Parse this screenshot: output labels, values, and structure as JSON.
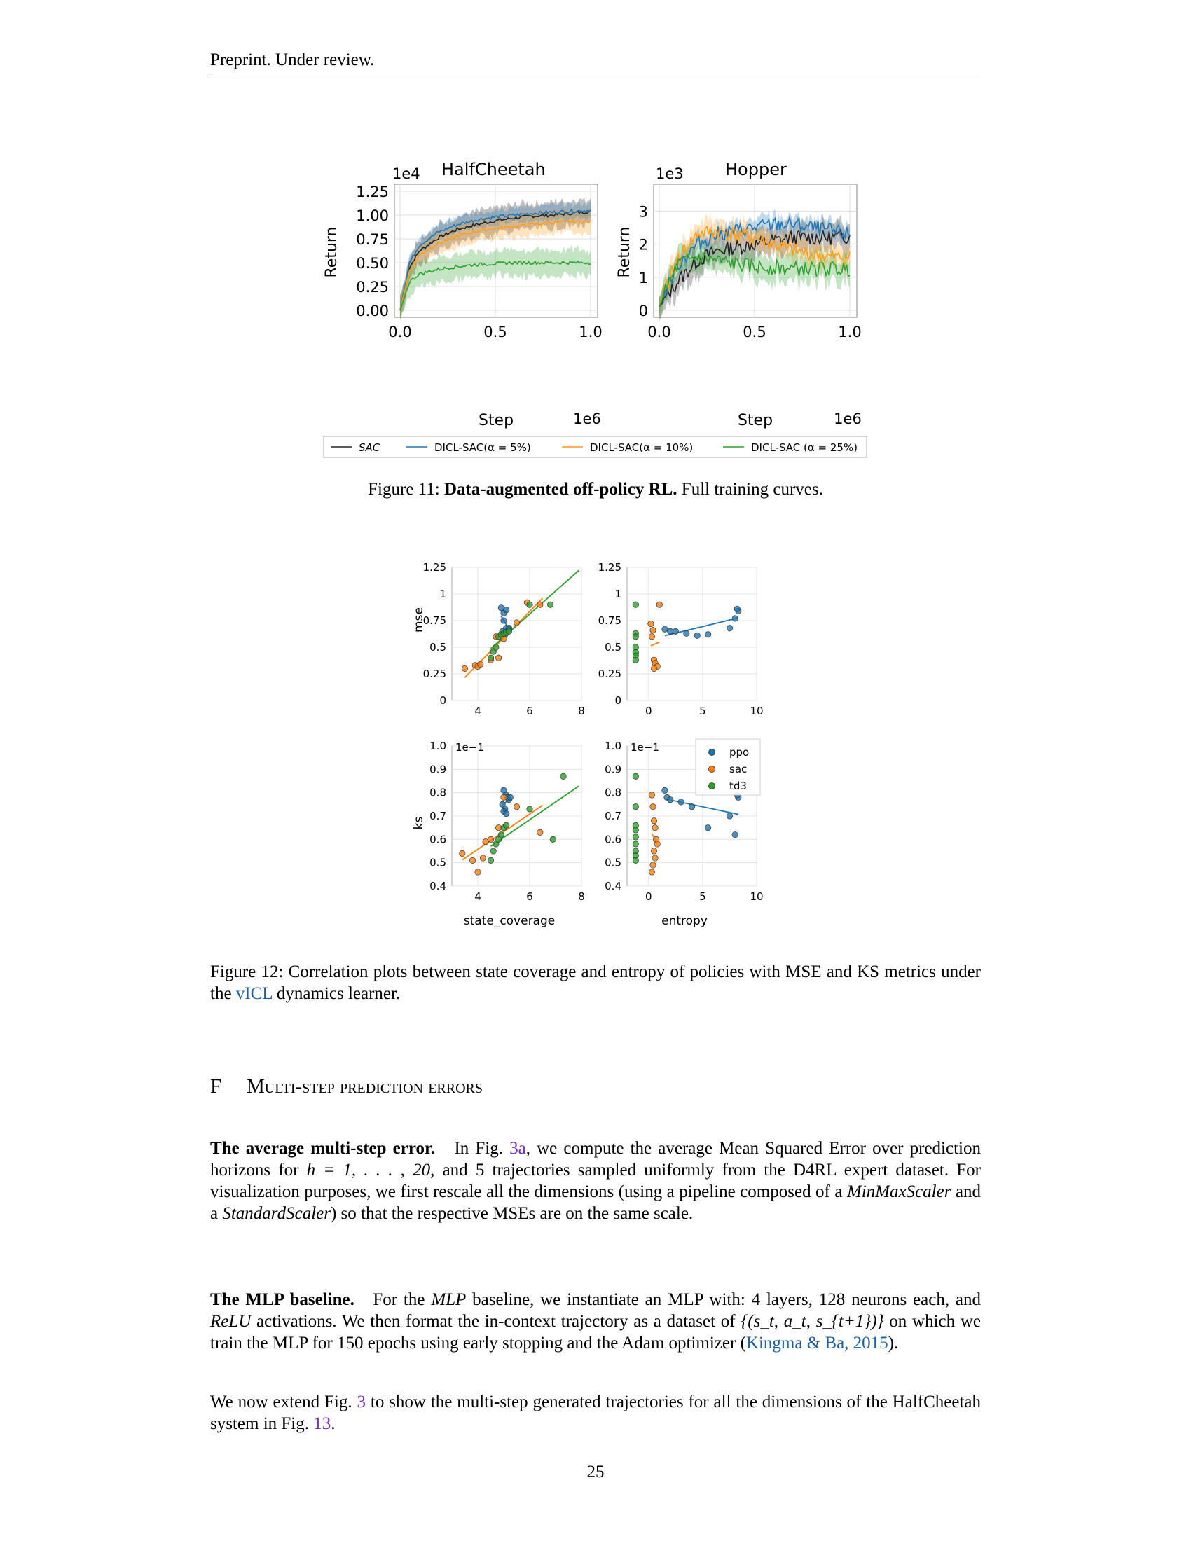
{
  "header": {
    "text": "Preprint. Under review."
  },
  "figure11": {
    "caption_label": "Figure 11:",
    "caption_bold": "Data-augmented off-policy RL.",
    "caption_rest": "Full training curves.",
    "legend": [
      "SAC",
      "DICL-SAC(α = 5%)",
      "DICL-SAC(α = 10%)",
      "DICL-SAC (α = 25%)"
    ],
    "colors": {
      "SAC": "#222222",
      "DICL-SAC 5%": "#1f77b4",
      "DICL-SAC 10%": "#ff9f1a",
      "DICL-SAC 25%": "#2ca02c"
    },
    "halfcheetah": {
      "title": "HalfCheetah",
      "multiplier": "1e4",
      "ylabel": "Return",
      "xlabel": "Step",
      "xmult": "1e6",
      "yticks": [
        "0.00",
        "0.25",
        "0.50",
        "0.75",
        "1.00",
        "1.25"
      ],
      "xticks": [
        "0.0",
        "0.5",
        "1.0"
      ]
    },
    "hopper": {
      "title": "Hopper",
      "multiplier": "1e3",
      "ylabel": "Return",
      "xlabel": "Step",
      "xmult": "1e6",
      "yticks": [
        "0",
        "1",
        "2",
        "3"
      ],
      "xticks": [
        "0.0",
        "0.5",
        "1.0"
      ]
    }
  },
  "figure12": {
    "caption": "Figure 12: Correlation plots between state coverage and entropy of policies with MSE and KS metrics under the vICL dynamics learner.",
    "caption_pre": "Figure 12: Correlation plots between state coverage and entropy of policies with MSE and KS metrics under the ",
    "caption_link": "vICL",
    "caption_post": " dynamics learner.",
    "legend": [
      "ppo",
      "sac",
      "td3"
    ],
    "colors": {
      "ppo": "#1f77b4",
      "sac": "#ff7f0e",
      "td3": "#2ca02c"
    },
    "mse_yticks": [
      "0",
      "0.25",
      "0.5",
      "0.75",
      "1",
      "1.25"
    ],
    "ks_yticks": [
      "0.4",
      "0.5",
      "0.6",
      "0.7",
      "0.8",
      "0.9",
      "1.0"
    ],
    "ks_multiplier": "1e−1",
    "state_xticks": [
      "4",
      "6",
      "8"
    ],
    "entropy_xticks": [
      "0",
      "5",
      "10"
    ],
    "ylabel_top": "mse",
    "ylabel_bottom": "ks",
    "xlabel_left": "state_coverage",
    "xlabel_right": "entropy"
  },
  "chart_data": [
    {
      "type": "line",
      "title": "HalfCheetah",
      "xlabel": "Step",
      "ylabel": "Return",
      "x": [
        0,
        0.05,
        0.1,
        0.2,
        0.3,
        0.4,
        0.5,
        0.6,
        0.7,
        0.8,
        0.9,
        1.0
      ],
      "ylim": [
        0,
        1.25
      ],
      "xlim": [
        0,
        1.0
      ],
      "series": [
        {
          "name": "SAC",
          "values": [
            0,
            0.45,
            0.62,
            0.76,
            0.85,
            0.9,
            0.94,
            0.97,
            0.99,
            1.0,
            1.02,
            1.04
          ]
        },
        {
          "name": "DICL-SAC(α = 5%)",
          "values": [
            0,
            0.5,
            0.68,
            0.82,
            0.9,
            0.95,
            0.98,
            1.0,
            1.02,
            1.03,
            1.04,
            1.05
          ]
        },
        {
          "name": "DICL-SAC(α = 10%)",
          "values": [
            0,
            0.42,
            0.58,
            0.7,
            0.78,
            0.83,
            0.86,
            0.88,
            0.9,
            0.92,
            0.93,
            0.93
          ]
        },
        {
          "name": "DICL-SAC (α = 25%)",
          "values": [
            0,
            0.3,
            0.38,
            0.43,
            0.46,
            0.48,
            0.49,
            0.5,
            0.5,
            0.5,
            0.5,
            0.5
          ]
        }
      ]
    },
    {
      "type": "line",
      "title": "Hopper",
      "xlabel": "Step",
      "ylabel": "Return",
      "x": [
        0,
        0.05,
        0.1,
        0.2,
        0.3,
        0.4,
        0.5,
        0.6,
        0.7,
        0.8,
        0.9,
        1.0
      ],
      "ylim": [
        0,
        3.6
      ],
      "xlim": [
        0,
        1.0
      ],
      "series": [
        {
          "name": "SAC",
          "values": [
            0.1,
            0.5,
            0.9,
            1.5,
            1.8,
            1.9,
            2.0,
            2.1,
            2.2,
            2.2,
            2.2,
            2.25
          ]
        },
        {
          "name": "DICL-SAC(α = 5%)",
          "values": [
            0.1,
            0.8,
            1.4,
            2.0,
            2.3,
            2.4,
            2.5,
            2.6,
            2.6,
            2.5,
            2.4,
            2.3
          ]
        },
        {
          "name": "DICL-SAC(α = 10%)",
          "values": [
            0.1,
            0.9,
            1.6,
            2.3,
            2.4,
            2.3,
            2.2,
            2.0,
            1.8,
            1.7,
            1.6,
            1.6
          ]
        },
        {
          "name": "DICL-SAC (α = 25%)",
          "values": [
            0.1,
            0.8,
            1.4,
            1.6,
            1.5,
            1.4,
            1.3,
            1.3,
            1.25,
            1.25,
            1.25,
            1.25
          ]
        }
      ]
    },
    {
      "type": "scatter",
      "xlabel": "",
      "ylabel": "mse",
      "xlim": [
        3,
        8
      ],
      "ylim": [
        0,
        1.25
      ],
      "series": [
        {
          "name": "ppo",
          "x": [
            4.9,
            5.0,
            5.1,
            5.2,
            4.95,
            5.05,
            5.15,
            5.0,
            5.1,
            5.2
          ],
          "y": [
            0.87,
            0.82,
            0.85,
            0.68,
            0.65,
            0.62,
            0.66,
            0.75,
            0.68,
            0.67
          ]
        },
        {
          "name": "sac",
          "x": [
            3.5,
            3.9,
            4.0,
            4.1,
            4.5,
            4.7,
            5.0,
            5.5,
            6.4,
            4.8,
            5.9
          ],
          "y": [
            0.3,
            0.33,
            0.32,
            0.34,
            0.38,
            0.6,
            0.58,
            0.73,
            0.9,
            0.4,
            0.92
          ]
        },
        {
          "name": "td3",
          "x": [
            4.5,
            4.6,
            4.7,
            4.8,
            4.9,
            5.0,
            5.1,
            5.2,
            6.0,
            6.8
          ],
          "y": [
            0.4,
            0.46,
            0.5,
            0.6,
            0.62,
            0.63,
            0.64,
            0.65,
            0.9,
            0.9
          ]
        }
      ]
    },
    {
      "type": "scatter",
      "xlabel": "",
      "ylabel": "",
      "xlim": [
        -2,
        10
      ],
      "ylim": [
        0,
        1.25
      ],
      "series": [
        {
          "name": "ppo",
          "x": [
            1.5,
            2.0,
            2.5,
            3.5,
            4.5,
            5.5,
            7.5,
            8.0,
            8.3,
            8.2
          ],
          "y": [
            0.67,
            0.65,
            0.65,
            0.63,
            0.61,
            0.62,
            0.68,
            0.77,
            0.84,
            0.86
          ]
        },
        {
          "name": "sac",
          "x": [
            0.2,
            0.4,
            0.5,
            0.6,
            0.8,
            1.0,
            0.3,
            0.5
          ],
          "y": [
            0.72,
            0.66,
            0.38,
            0.35,
            0.32,
            0.9,
            0.6,
            0.3
          ]
        },
        {
          "name": "td3",
          "x": [
            -1.2,
            -1.2,
            -1.2,
            -1.2,
            -1.2,
            -1.2,
            -1.2
          ],
          "y": [
            0.9,
            0.63,
            0.6,
            0.5,
            0.45,
            0.42,
            0.38
          ]
        }
      ]
    },
    {
      "type": "scatter",
      "xlabel": "state_coverage",
      "ylabel": "ks",
      "xlim": [
        3,
        8
      ],
      "ylim": [
        0.04,
        0.1
      ],
      "series": [
        {
          "name": "ppo",
          "x": [
            5.0,
            5.1,
            5.15,
            5.2,
            4.95,
            5.05,
            5.25,
            5.0,
            5.1
          ],
          "y": [
            0.081,
            0.079,
            0.078,
            0.077,
            0.075,
            0.073,
            0.078,
            0.072,
            0.071
          ]
        },
        {
          "name": "sac",
          "x": [
            3.4,
            3.8,
            4.0,
            4.2,
            4.3,
            5.0,
            5.5,
            4.8,
            4.5,
            6.4
          ],
          "y": [
            0.054,
            0.051,
            0.046,
            0.052,
            0.059,
            0.078,
            0.074,
            0.065,
            0.06,
            0.063
          ]
        },
        {
          "name": "td3",
          "x": [
            4.5,
            4.6,
            4.7,
            4.8,
            4.9,
            5.0,
            5.1,
            6.0,
            6.9,
            7.3
          ],
          "y": [
            0.051,
            0.055,
            0.058,
            0.06,
            0.062,
            0.065,
            0.066,
            0.073,
            0.06,
            0.087
          ]
        }
      ]
    },
    {
      "type": "scatter",
      "xlabel": "entropy",
      "ylabel": "",
      "xlim": [
        -2,
        10
      ],
      "ylim": [
        0.04,
        0.1
      ],
      "series": [
        {
          "name": "ppo",
          "x": [
            1.5,
            1.7,
            2.0,
            3.0,
            4.0,
            5.5,
            7.5,
            8.0,
            8.3,
            8.2
          ],
          "y": [
            0.081,
            0.078,
            0.077,
            0.076,
            0.074,
            0.065,
            0.07,
            0.062,
            0.078,
            0.079
          ]
        },
        {
          "name": "sac",
          "x": [
            0.3,
            0.4,
            0.5,
            0.6,
            0.7,
            0.8,
            0.5,
            0.6,
            0.4,
            0.3
          ],
          "y": [
            0.079,
            0.074,
            0.068,
            0.065,
            0.06,
            0.058,
            0.055,
            0.052,
            0.049,
            0.046
          ]
        },
        {
          "name": "td3",
          "x": [
            -1.2,
            -1.2,
            -1.2,
            -1.2,
            -1.2,
            -1.2,
            -1.2,
            -1.2,
            -1.2
          ],
          "y": [
            0.087,
            0.074,
            0.066,
            0.064,
            0.061,
            0.058,
            0.055,
            0.053,
            0.051
          ]
        }
      ]
    }
  ],
  "section": {
    "number": "F",
    "title": "Multi-step prediction errors"
  },
  "para1": {
    "bold": "The average multi-step error.",
    "t1": "In Fig. ",
    "link": "3a",
    "t2": ", we compute the average Mean Squared Error over prediction horizons for ",
    "math1": "h = 1, . . . , 20",
    "t3": ", and 5 trajectories sampled uniformly from the D4RL expert dataset. For visualization purposes, we first rescale all the dimensions (using a pipeline composed of a ",
    "i1": "MinMaxScaler",
    "t4": " and a ",
    "i2": "StandardScaler",
    "t5": ") so that the respective MSEs are on the same scale."
  },
  "para2": {
    "bold": "The MLP baseline.",
    "t1": "For the ",
    "i1": "MLP",
    "t2": " baseline, we instantiate an MLP with: 4 layers, 128 neurons each, and ",
    "i2": "ReLU",
    "t3": " activations. We then format the in-context trajectory as a dataset of ",
    "math": "{(s_t, a_t, s_{t+1})}",
    "t4": " on which we train the MLP for 150 epochs using early stopping and the Adam optimizer (",
    "cite": "Kingma & Ba, 2015",
    "t5": ")."
  },
  "para3": {
    "t1": "We now extend Fig. ",
    "link1": "3",
    "t2": " to show the multi-step generated trajectories for all the dimensions of the HalfCheetah system in Fig. ",
    "link2": "13",
    "t3": "."
  },
  "page_number": "25"
}
